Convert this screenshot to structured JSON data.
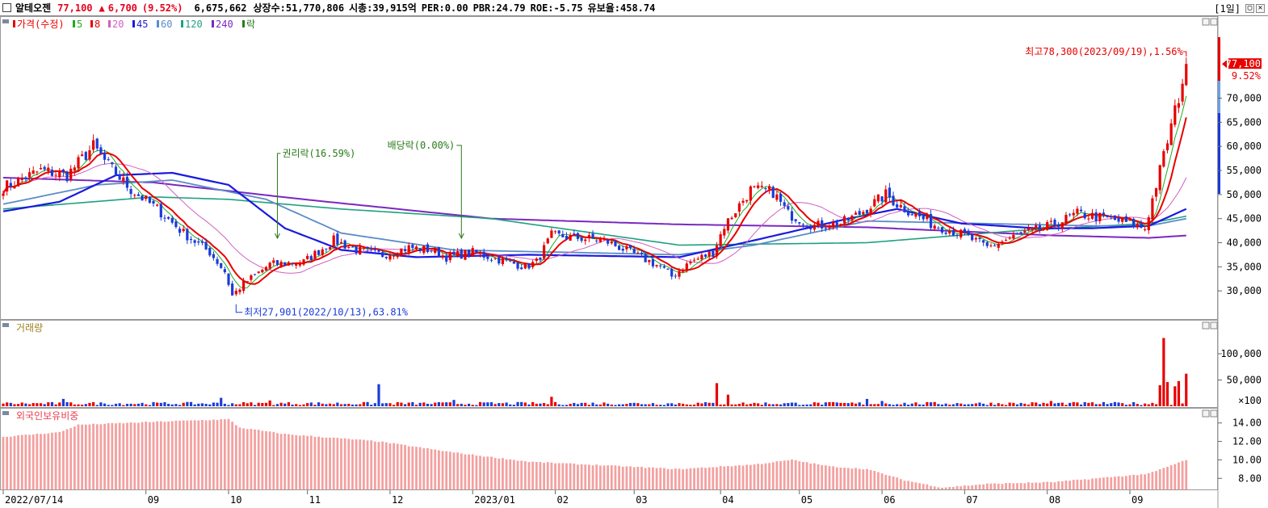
{
  "header": {
    "stock_name": "알테오젠",
    "price": "77,100",
    "change_arrow": "▲",
    "change": "6,700",
    "change_pct": "(9.52%)",
    "volume": "6,675,662",
    "listed_shares": "상장수:51,770,806",
    "market_cap": "시총:39,915억",
    "per": "PER:0.00",
    "pbr": "PBR:24.79",
    "roe": "ROE:-5.75",
    "reserve_ratio": "유보율:458.74",
    "period": "[1일]",
    "min_btn": "▢",
    "close_btn": "✕"
  },
  "chart_data": [
    {
      "type": "candlestick",
      "panel": "price",
      "legend": [
        "가격(수정)",
        "5",
        "8",
        "20",
        "45",
        "60",
        "120",
        "240",
        "락"
      ],
      "ma_colors": {
        "5": "#22aa22",
        "8": "#e80000",
        "20": "#d060c0",
        "45": "#1a1ae0",
        "60": "#5a8cc8",
        "120": "#20a080",
        "240": "#7a28c0"
      },
      "ylim": [
        25000,
        83000
      ],
      "y_ticks": [
        30000,
        35000,
        40000,
        45000,
        50000,
        55000,
        60000,
        65000,
        70000
      ],
      "y_tick_labels": [
        "30,000",
        "35,000",
        "40,000",
        "45,000",
        "50,000",
        "55,000",
        "60,000",
        "65,000",
        "70,000"
      ],
      "close_key_points": [
        [
          0,
          51500
        ],
        [
          10,
          55000
        ],
        [
          17,
          54000
        ],
        [
          24,
          60000
        ],
        [
          28,
          56000
        ],
        [
          34,
          51000
        ],
        [
          41,
          47000
        ],
        [
          48,
          42000
        ],
        [
          55,
          38000
        ],
        [
          59,
          34000
        ],
        [
          61,
          29000
        ],
        [
          64,
          31500
        ],
        [
          71,
          35500
        ],
        [
          80,
          36000
        ],
        [
          88,
          40500
        ],
        [
          94,
          38500
        ],
        [
          101,
          37500
        ],
        [
          108,
          39000
        ],
        [
          114,
          38500
        ],
        [
          118,
          37000
        ],
        [
          125,
          38000
        ],
        [
          132,
          36500
        ],
        [
          139,
          35000
        ],
        [
          142,
          36000
        ],
        [
          146,
          41500
        ],
        [
          153,
          41000
        ],
        [
          160,
          40500
        ],
        [
          167,
          38000
        ],
        [
          175,
          35000
        ],
        [
          178,
          33000
        ],
        [
          183,
          36000
        ],
        [
          189,
          38000
        ],
        [
          192,
          43500
        ],
        [
          199,
          51000
        ],
        [
          205,
          50500
        ],
        [
          209,
          46000
        ],
        [
          216,
          43500
        ],
        [
          223,
          44000
        ],
        [
          228,
          46000
        ],
        [
          235,
          50000
        ],
        [
          238,
          48000
        ],
        [
          247,
          44000
        ],
        [
          256,
          41500
        ],
        [
          262,
          39000
        ],
        [
          270,
          41500
        ],
        [
          279,
          43500
        ],
        [
          286,
          46000
        ],
        [
          294,
          45000
        ],
        [
          300,
          44000
        ],
        [
          304,
          43000
        ],
        [
          308,
          55000
        ],
        [
          313,
          70300
        ],
        [
          315,
          77100
        ]
      ],
      "ma_240_key_points": [
        [
          0,
          53500
        ],
        [
          40,
          52500
        ],
        [
          80,
          49000
        ],
        [
          130,
          45000
        ],
        [
          180,
          43800
        ],
        [
          230,
          43200
        ],
        [
          280,
          41500
        ],
        [
          305,
          41000
        ],
        [
          315,
          41500
        ]
      ],
      "ma_120_key_points": [
        [
          0,
          47000
        ],
        [
          40,
          49500
        ],
        [
          60,
          49000
        ],
        [
          90,
          47000
        ],
        [
          130,
          45000
        ],
        [
          180,
          39500
        ],
        [
          230,
          40000
        ],
        [
          270,
          42500
        ],
        [
          305,
          44000
        ],
        [
          315,
          45500
        ]
      ],
      "ma_60_key_points": [
        [
          0,
          48000
        ],
        [
          25,
          52000
        ],
        [
          45,
          53000
        ],
        [
          70,
          49000
        ],
        [
          90,
          42000
        ],
        [
          120,
          38500
        ],
        [
          180,
          37500
        ],
        [
          200,
          39500
        ],
        [
          230,
          44500
        ],
        [
          260,
          44000
        ],
        [
          290,
          43500
        ],
        [
          305,
          43500
        ],
        [
          315,
          45000
        ]
      ],
      "ma_45_key_points": [
        [
          0,
          46500
        ],
        [
          15,
          48500
        ],
        [
          30,
          54000
        ],
        [
          45,
          54500
        ],
        [
          60,
          52000
        ],
        [
          75,
          43000
        ],
        [
          90,
          38500
        ],
        [
          110,
          37000
        ],
        [
          140,
          37500
        ],
        [
          180,
          37000
        ],
        [
          200,
          40500
        ],
        [
          225,
          45000
        ],
        [
          238,
          47000
        ],
        [
          255,
          44000
        ],
        [
          275,
          43000
        ],
        [
          290,
          43000
        ],
        [
          305,
          43500
        ],
        [
          315,
          47000
        ]
      ],
      "annotations": [
        {
          "text": "최고78,300(2023/09/19),1.56%",
          "bar": 315,
          "value": 78300
        },
        {
          "text": "최저27,901(2022/10/13),63.81%",
          "bar": 62,
          "value": 27901
        },
        {
          "text": "권리락(16.59%)",
          "bar": 73
        },
        {
          "text": "배당락(0.00%)",
          "bar": 122
        }
      ],
      "last_price_label": "77,100",
      "last_pct_label": "9.52%"
    },
    {
      "type": "bar",
      "panel": "volume",
      "legend": [
        "거래량"
      ],
      "y_ticks": [
        50000,
        100000
      ],
      "y_tick_labels": [
        "50,000",
        "100,000"
      ],
      "unit_label": "×100",
      "ylim": [
        0,
        140000
      ],
      "baseline_volume": 4500,
      "spikes": [
        [
          16,
          14000
        ],
        [
          58,
          16000
        ],
        [
          71,
          11000
        ],
        [
          100,
          42000
        ],
        [
          120,
          12000
        ],
        [
          146,
          18000
        ],
        [
          190,
          44000
        ],
        [
          193,
          22000
        ],
        [
          230,
          14000
        ],
        [
          234,
          10000
        ],
        [
          279,
          10000
        ],
        [
          308,
          40000
        ],
        [
          309,
          130000
        ],
        [
          310,
          46000
        ],
        [
          312,
          38000
        ],
        [
          313,
          48000
        ],
        [
          315,
          62000
        ]
      ]
    },
    {
      "type": "bar",
      "panel": "foreign_ownership",
      "legend": [
        "외국인보유비중"
      ],
      "y_ticks": [
        8,
        10,
        12,
        14
      ],
      "y_tick_labels": [
        "8.00",
        "10.00",
        "12.00",
        "14.00"
      ],
      "ylim": [
        6.8,
        15.2
      ],
      "key_points": [
        [
          0,
          12.5
        ],
        [
          15,
          13.0
        ],
        [
          20,
          13.8
        ],
        [
          45,
          14.2
        ],
        [
          60,
          14.4
        ],
        [
          63,
          13.5
        ],
        [
          75,
          12.8
        ],
        [
          100,
          12.0
        ],
        [
          120,
          10.8
        ],
        [
          140,
          9.8
        ],
        [
          160,
          9.4
        ],
        [
          180,
          9.0
        ],
        [
          200,
          9.5
        ],
        [
          210,
          10.0
        ],
        [
          220,
          9.3
        ],
        [
          230,
          9.0
        ],
        [
          240,
          7.8
        ],
        [
          250,
          7.0
        ],
        [
          262,
          7.4
        ],
        [
          280,
          7.6
        ],
        [
          305,
          8.5
        ],
        [
          315,
          10.0
        ]
      ]
    }
  ],
  "x_axis": {
    "labels": [
      {
        "bar": 0,
        "text": "2022/07/14"
      },
      {
        "bar": 38,
        "text": "09"
      },
      {
        "bar": 60,
        "text": "10"
      },
      {
        "bar": 81,
        "text": "11"
      },
      {
        "bar": 103,
        "text": "12"
      },
      {
        "bar": 125,
        "text": "2023/01"
      },
      {
        "bar": 147,
        "text": "02"
      },
      {
        "bar": 168,
        "text": "03"
      },
      {
        "bar": 191,
        "text": "04"
      },
      {
        "bar": 212,
        "text": "05"
      },
      {
        "bar": 234,
        "text": "06"
      },
      {
        "bar": 256,
        "text": "07"
      },
      {
        "bar": 278,
        "text": "08"
      },
      {
        "bar": 300,
        "text": "09"
      }
    ]
  },
  "colors": {
    "up": "#e80000",
    "down": "#1a3cd8",
    "annotation_green": "#2a7a1a",
    "annotation_red": "#e80000"
  }
}
